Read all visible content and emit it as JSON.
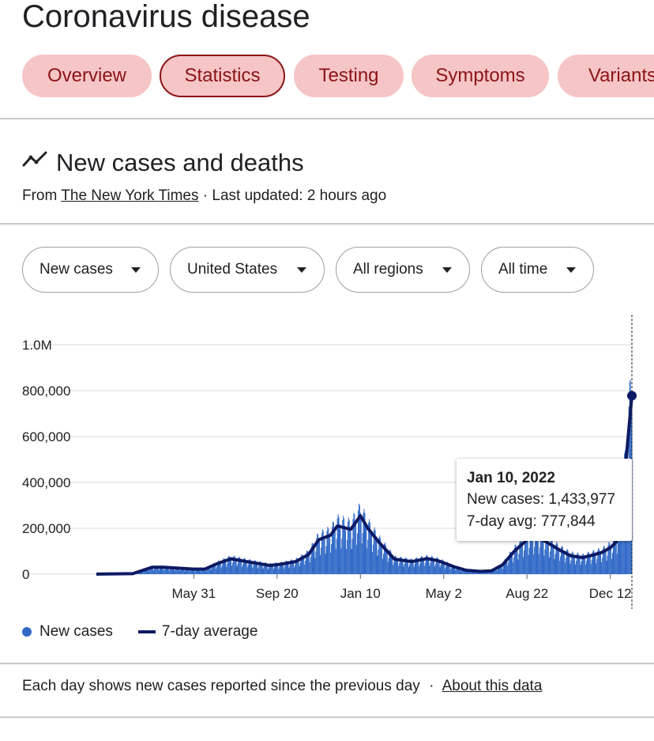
{
  "page": {
    "title": "Coronavirus disease"
  },
  "tabs": [
    {
      "label": "Overview",
      "active": false
    },
    {
      "label": "Statistics",
      "active": true
    },
    {
      "label": "Testing",
      "active": false
    },
    {
      "label": "Symptoms",
      "active": false
    },
    {
      "label": "Variants",
      "active": false
    }
  ],
  "section": {
    "title": "New cases and deaths",
    "icon": "trending-line-icon",
    "source_prefix": "From",
    "source_name": "The New York Times",
    "updated": "· Last updated: 2 hours ago"
  },
  "filters": [
    {
      "label": "New cases"
    },
    {
      "label": "United States"
    },
    {
      "label": "All regions"
    },
    {
      "label": "All time"
    }
  ],
  "chart_data": {
    "type": "bar",
    "series": [
      {
        "name": "New cases",
        "kind": "bar",
        "color": "#3069c7"
      },
      {
        "name": "7-day average",
        "kind": "line",
        "color": "#0d1a63"
      }
    ],
    "x_start": "2020-01-21",
    "x_end": "2022-01-10",
    "xticks": [
      {
        "label": "May 31",
        "date": "2020-05-31"
      },
      {
        "label": "Sep 20",
        "date": "2020-09-20"
      },
      {
        "label": "Jan 10",
        "date": "2021-01-10"
      },
      {
        "label": "May 2",
        "date": "2021-05-02"
      },
      {
        "label": "Aug 22",
        "date": "2021-08-22"
      },
      {
        "label": "Dec 12",
        "date": "2021-12-12"
      }
    ],
    "yticks": [
      {
        "label": "0",
        "value": 0
      },
      {
        "label": "200,000",
        "value": 200000
      },
      {
        "label": "400,000",
        "value": 400000
      },
      {
        "label": "600,000",
        "value": 600000
      },
      {
        "label": "800,000",
        "value": 800000
      },
      {
        "label": "1.0M",
        "value": 1000000
      }
    ],
    "ylim": [
      0,
      1000000
    ],
    "avg_points": [
      [
        "2020-01-21",
        0
      ],
      [
        "2020-03-10",
        2000
      ],
      [
        "2020-04-05",
        30000
      ],
      [
        "2020-04-20",
        30000
      ],
      [
        "2020-05-31",
        22000
      ],
      [
        "2020-06-15",
        22000
      ],
      [
        "2020-07-01",
        45000
      ],
      [
        "2020-07-20",
        67000
      ],
      [
        "2020-08-10",
        55000
      ],
      [
        "2020-09-10",
        38000
      ],
      [
        "2020-09-25",
        43000
      ],
      [
        "2020-10-15",
        55000
      ],
      [
        "2020-11-01",
        85000
      ],
      [
        "2020-11-15",
        150000
      ],
      [
        "2020-12-01",
        170000
      ],
      [
        "2020-12-10",
        210000
      ],
      [
        "2020-12-28",
        195000
      ],
      [
        "2021-01-10",
        255000
      ],
      [
        "2021-01-20",
        200000
      ],
      [
        "2021-02-05",
        135000
      ],
      [
        "2021-02-25",
        65000
      ],
      [
        "2021-03-20",
        55000
      ],
      [
        "2021-04-10",
        68000
      ],
      [
        "2021-04-25",
        58000
      ],
      [
        "2021-05-15",
        33000
      ],
      [
        "2021-06-01",
        17000
      ],
      [
        "2021-06-20",
        12000
      ],
      [
        "2021-07-05",
        14000
      ],
      [
        "2021-07-20",
        40000
      ],
      [
        "2021-08-05",
        100000
      ],
      [
        "2021-08-22",
        150000
      ],
      [
        "2021-09-05",
        162000
      ],
      [
        "2021-09-20",
        135000
      ],
      [
        "2021-10-05",
        105000
      ],
      [
        "2021-10-20",
        80000
      ],
      [
        "2021-11-05",
        72000
      ],
      [
        "2021-11-20",
        85000
      ],
      [
        "2021-12-01",
        95000
      ],
      [
        "2021-12-12",
        115000
      ],
      [
        "2021-12-20",
        140000
      ],
      [
        "2021-12-25",
        250000
      ],
      [
        "2022-01-01",
        450000
      ],
      [
        "2022-01-05",
        600000
      ],
      [
        "2022-01-10",
        777844
      ]
    ],
    "tooltip": {
      "date": "Jan 10, 2022",
      "new_cases_label": "New cases:",
      "new_cases_value": "1,433,977",
      "avg_label": "7-day avg:",
      "avg_value": "777,844"
    },
    "grid": true,
    "legend_position": "bottom-left"
  },
  "footer": {
    "note": "Each day shows new cases reported since the previous day",
    "separator": "·",
    "link": "About this data"
  }
}
